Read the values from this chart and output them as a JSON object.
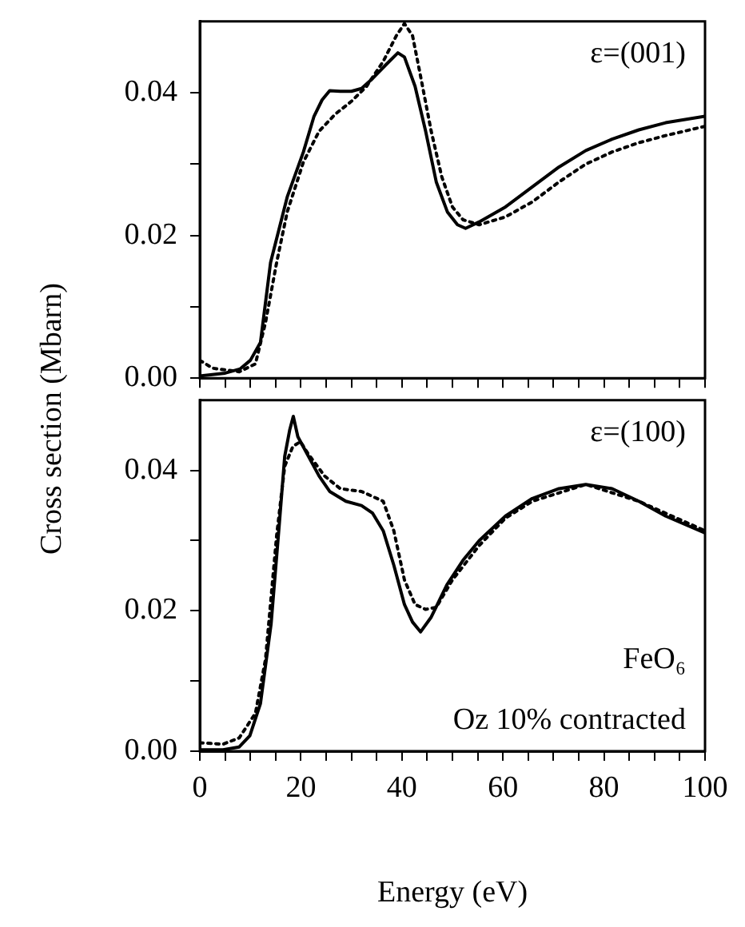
{
  "chart_data": [
    {
      "type": "line",
      "ylabel": "Cross section (Mbarn)",
      "xlim": [
        0,
        100
      ],
      "ylim": [
        0,
        0.05
      ],
      "tick_labels": "y",
      "marker": "none",
      "xticks": [
        0,
        {
          "value": 5,
          "label": null
        },
        {
          "value": 10,
          "label": null
        },
        {
          "value": 15,
          "label": null
        },
        {
          "value": 20,
          "label": null
        },
        {
          "value": 25,
          "label": null
        },
        {
          "value": 30,
          "label": null
        },
        {
          "value": 35,
          "label": null
        },
        {
          "value": 40,
          "label": null
        },
        {
          "value": 45,
          "label": null
        },
        {
          "value": 50,
          "label": null
        },
        {
          "value": 55,
          "label": null
        },
        {
          "value": 60,
          "label": null
        },
        {
          "value": 65,
          "label": null
        },
        {
          "value": 70,
          "label": null
        },
        {
          "value": 75,
          "label": null
        },
        {
          "value": 80,
          "label": null
        },
        {
          "value": 85,
          "label": null
        },
        {
          "value": 90,
          "label": null
        },
        {
          "value": 95,
          "label": null
        },
        {
          "value": 100,
          "label": null
        }
      ],
      "yticks": [
        {
          "value": 0,
          "label": "0.00"
        },
        {
          "value": 0.01,
          "label": null
        },
        {
          "value": 0.02,
          "label": "0.02"
        },
        {
          "value": 0.03,
          "label": null
        },
        {
          "value": 0.04,
          "label": "0.04"
        }
      ],
      "annotations": [
        "ε=(001)"
      ],
      "series": [
        {
          "color": "#000000",
          "line_style": "solid",
          "x": [
            0,
            5,
            8,
            10,
            12,
            14,
            17.3,
            20.5,
            22.6,
            24.2,
            25.7,
            27.8,
            30,
            32,
            34.2,
            36.8,
            39.2,
            40.5,
            42.6,
            44.7,
            46.8,
            49,
            51,
            52.6,
            55.3,
            60.5,
            65.8,
            71.1,
            76.4,
            81.6,
            86.9,
            92.2,
            100
          ],
          "values": [
            0.0003,
            0.0007,
            0.0013,
            0.0025,
            0.005,
            0.0162,
            0.0254,
            0.0317,
            0.0367,
            0.039,
            0.0403,
            0.0402,
            0.0402,
            0.0406,
            0.042,
            0.0439,
            0.0456,
            0.045,
            0.0409,
            0.0346,
            0.0275,
            0.0233,
            0.0215,
            0.021,
            0.0219,
            0.024,
            0.0268,
            0.0296,
            0.0319,
            0.0335,
            0.0348,
            0.0358,
            0.0367
          ]
        },
        {
          "color": "#000000",
          "line_style": "dotted",
          "x": [
            0,
            2.5,
            7.8,
            11,
            13,
            15.2,
            17.3,
            20.5,
            23.6,
            26.8,
            30,
            33,
            36.3,
            38.9,
            40.5,
            42.1,
            43.7,
            45.8,
            47.9,
            50,
            52.1,
            55.3,
            60.5,
            65.8,
            71.1,
            76.4,
            81.6,
            86.9,
            92.2,
            100
          ],
          "values": [
            0.0025,
            0.0014,
            0.0009,
            0.002,
            0.0078,
            0.0162,
            0.0233,
            0.0303,
            0.0346,
            0.037,
            0.0388,
            0.0409,
            0.0444,
            0.048,
            0.0497,
            0.048,
            0.0423,
            0.0346,
            0.0282,
            0.024,
            0.0222,
            0.0215,
            0.0226,
            0.0247,
            0.0275,
            0.03,
            0.0317,
            0.033,
            0.034,
            0.0353
          ]
        }
      ]
    },
    {
      "type": "line",
      "xlabel": "Energy (eV)",
      "xlim": [
        0,
        100
      ],
      "ylim": [
        0,
        0.05
      ],
      "marker": "none",
      "xticks": [
        0,
        {
          "value": 5,
          "label": null
        },
        {
          "value": 10,
          "label": null
        },
        {
          "value": 15,
          "label": null
        },
        20,
        {
          "value": 25,
          "label": null
        },
        {
          "value": 30,
          "label": null
        },
        {
          "value": 35,
          "label": null
        },
        40,
        {
          "value": 45,
          "label": null
        },
        {
          "value": 50,
          "label": null
        },
        {
          "value": 55,
          "label": null
        },
        60,
        {
          "value": 65,
          "label": null
        },
        {
          "value": 70,
          "label": null
        },
        {
          "value": 75,
          "label": null
        },
        80,
        {
          "value": 85,
          "label": null
        },
        {
          "value": 90,
          "label": null
        },
        {
          "value": 95,
          "label": null
        },
        100
      ],
      "yticks": [
        {
          "value": 0,
          "label": "0.00"
        },
        {
          "value": 0.01,
          "label": null
        },
        {
          "value": 0.02,
          "label": "0.02"
        },
        {
          "value": 0.03,
          "label": null
        },
        {
          "value": 0.04,
          "label": "0.04"
        }
      ],
      "annotations": [
        "ε=(100)",
        "FeO₆",
        "Oz 10% contracted"
      ],
      "series": [
        {
          "color": "#000000",
          "line_style": "solid",
          "x": [
            0,
            4.6,
            7.8,
            9.9,
            12,
            14.1,
            15.7,
            16.8,
            17.8,
            18.5,
            19.4,
            21.5,
            23.6,
            25.7,
            28.9,
            32,
            34.2,
            36.3,
            38.4,
            40.5,
            42.1,
            43.7,
            45.8,
            48.9,
            52.1,
            55.3,
            60.5,
            65.8,
            71.1,
            76.4,
            81.6,
            86.9,
            92.2,
            100
          ],
          "values": [
            0.0002,
            0.0002,
            0.0006,
            0.0022,
            0.0068,
            0.0181,
            0.0321,
            0.042,
            0.0458,
            0.0477,
            0.0448,
            0.042,
            0.0392,
            0.037,
            0.0356,
            0.035,
            0.0339,
            0.0314,
            0.0265,
            0.0209,
            0.0184,
            0.017,
            0.0191,
            0.0237,
            0.0272,
            0.03,
            0.0335,
            0.036,
            0.0374,
            0.038,
            0.0374,
            0.0356,
            0.0335,
            0.0311
          ]
        },
        {
          "color": "#000000",
          "line_style": "dotted",
          "x": [
            0,
            4.6,
            7.8,
            11,
            13,
            15.2,
            16.8,
            18.4,
            19.9,
            21.5,
            24.7,
            27.8,
            32,
            36.3,
            38.4,
            40.5,
            42.6,
            44.7,
            46.8,
            50,
            55.3,
            60.5,
            65.8,
            76.4,
            86.9,
            100
          ],
          "values": [
            0.0012,
            0.001,
            0.0019,
            0.0054,
            0.0131,
            0.0307,
            0.0406,
            0.0434,
            0.0441,
            0.0423,
            0.0392,
            0.0374,
            0.037,
            0.0356,
            0.0314,
            0.0244,
            0.0209,
            0.0202,
            0.0205,
            0.0244,
            0.0293,
            0.0332,
            0.0356,
            0.038,
            0.0356,
            0.0314
          ]
        }
      ]
    }
  ]
}
